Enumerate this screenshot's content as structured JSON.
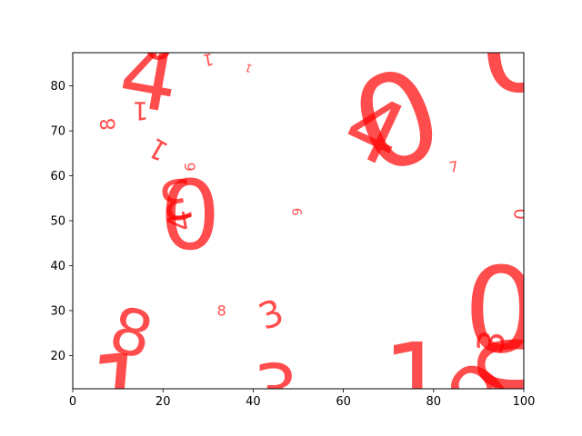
{
  "chart_data": {
    "type": "scatter",
    "title": "",
    "xlabel": "",
    "ylabel": "",
    "xlim": [
      0,
      100
    ],
    "ylim": [
      12.6,
      87.4
    ],
    "xticks": [
      0,
      20,
      40,
      60,
      80,
      100
    ],
    "yticks": [
      20,
      30,
      40,
      50,
      60,
      70,
      80
    ],
    "grid": false,
    "marker_color": "#ff0000",
    "marker_alpha": 0.7,
    "points": [
      {
        "label": "4",
        "x": 17,
        "y": 82,
        "rot": -10,
        "size": 100
      },
      {
        "label": "0",
        "x": 19,
        "y": 90,
        "rot": 0,
        "size": 60
      },
      {
        "label": "1",
        "x": 15,
        "y": 74.5,
        "rot": 180,
        "size": 28
      },
      {
        "label": "1",
        "x": 30,
        "y": 86,
        "rot": 190,
        "size": 18
      },
      {
        "label": "1",
        "x": 39,
        "y": 84,
        "rot": 160,
        "size": 12
      },
      {
        "label": "8",
        "x": 8,
        "y": 71.5,
        "rot": 95,
        "size": 22
      },
      {
        "label": "1",
        "x": 19,
        "y": 66,
        "rot": 150,
        "size": 30
      },
      {
        "label": "0",
        "x": 26,
        "y": 52,
        "rot": 180,
        "size": 105
      },
      {
        "label": "3",
        "x": 23,
        "y": 55,
        "rot": 190,
        "size": 60
      },
      {
        "label": "6",
        "x": 26,
        "y": 62,
        "rot": 90,
        "size": 16
      },
      {
        "label": "4",
        "x": 24,
        "y": 50,
        "rot": 100,
        "size": 36
      },
      {
        "label": "9",
        "x": 50,
        "y": 52,
        "rot": 90,
        "size": 14
      },
      {
        "label": "4",
        "x": 67,
        "y": 70,
        "rot": -25,
        "size": 95
      },
      {
        "label": "0",
        "x": 72,
        "y": 72,
        "rot": 20,
        "size": 140
      },
      {
        "label": "7",
        "x": 84.5,
        "y": 62,
        "rot": 10,
        "size": 16
      },
      {
        "label": "0",
        "x": 99.5,
        "y": 51.5,
        "rot": 90,
        "size": 20
      },
      {
        "label": "0",
        "x": 99,
        "y": 88.5,
        "rot": 0,
        "size": 140
      },
      {
        "label": "8",
        "x": 33,
        "y": 30,
        "rot": 0,
        "size": 16
      },
      {
        "label": "8",
        "x": 13,
        "y": 25,
        "rot": -15,
        "size": 70
      },
      {
        "label": "1",
        "x": 10,
        "y": 12,
        "rot": -5,
        "size": 110
      },
      {
        "label": "3",
        "x": 44,
        "y": 29,
        "rot": 20,
        "size": 40
      },
      {
        "label": "3",
        "x": 45,
        "y": 12,
        "rot": 0,
        "size": 80
      },
      {
        "label": "1",
        "x": 76,
        "y": 14,
        "rot": 0,
        "size": 115
      },
      {
        "label": "0",
        "x": 95,
        "y": 30,
        "rot": 0,
        "size": 130
      },
      {
        "label": "3",
        "x": 93,
        "y": 23,
        "rot": 80,
        "size": 40
      },
      {
        "label": "0",
        "x": 98.5,
        "y": 18,
        "rot": 90,
        "size": 110
      },
      {
        "label": "9",
        "x": 91,
        "y": 11,
        "rot": 45,
        "size": 95
      }
    ]
  }
}
